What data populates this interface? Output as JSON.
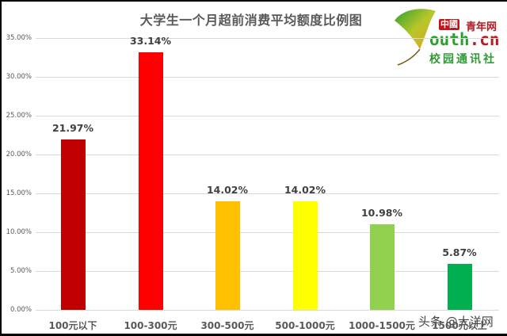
{
  "chart_data": {
    "type": "bar",
    "title": "大学生一个月超前消费平均额度比例图",
    "xlabel": "",
    "ylabel": "",
    "categories": [
      "100元以下",
      "100-300元",
      "300-500元",
      "500-1000元",
      "1000-1500元",
      "1500元以上"
    ],
    "values": [
      21.97,
      33.14,
      14.02,
      14.02,
      10.98,
      5.87
    ],
    "value_labels": [
      "21.97%",
      "33.14%",
      "14.02%",
      "14.02%",
      "10.98%",
      "5.87%"
    ],
    "bar_colors": [
      "#c00000",
      "#ff0000",
      "#ffc000",
      "#ffff00",
      "#92d050",
      "#00b050"
    ],
    "ylim": [
      0,
      35
    ],
    "yticks": [
      "0.00%",
      "5.00%",
      "10.00%",
      "15.00%",
      "20.00%",
      "25.00%",
      "30.00%",
      "35.00%"
    ],
    "grid": true,
    "legend": "none"
  },
  "logo": {
    "badge": "中國",
    "name_cn": "青年网",
    "domain_prefix": "outh",
    "domain_suffix": ".cn",
    "subtitle": "校园通讯社"
  },
  "watermark": "头条 @大洋网"
}
